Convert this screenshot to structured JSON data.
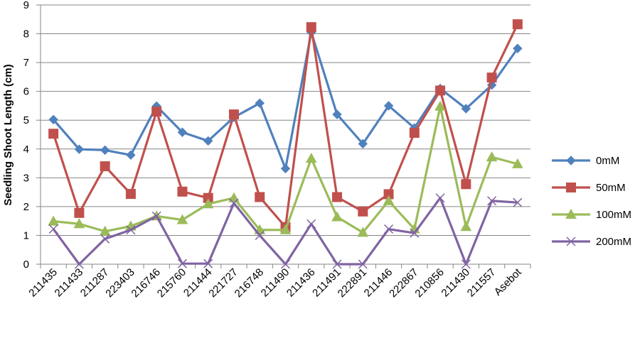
{
  "chart_data": {
    "type": "line",
    "title": "",
    "xlabel": "",
    "ylabel": "Seedling Shoot Length (cm)",
    "ylim": [
      0,
      9
    ],
    "yticks": [
      0,
      1,
      2,
      3,
      4,
      5,
      6,
      7,
      8,
      9
    ],
    "grid": "horizontal",
    "legend_position": "right",
    "categories": [
      "211435",
      "211433",
      "211287",
      "223403",
      "216746",
      "215760",
      "211444",
      "221727",
      "216748",
      "211490",
      "211436",
      "211491",
      "222891",
      "211446",
      "222867",
      "210856",
      "211430",
      "211557",
      "Asebot"
    ],
    "series": [
      {
        "name": "0mM",
        "color": "#4F81BD",
        "marker": "diamond",
        "values": [
          5.02,
          3.99,
          3.96,
          3.79,
          5.49,
          4.58,
          4.28,
          5.1,
          5.59,
          3.32,
          8.05,
          5.2,
          4.18,
          5.5,
          4.73,
          6.1,
          5.4,
          6.22,
          7.49
        ]
      },
      {
        "name": "50mM",
        "color": "#C0504D",
        "marker": "square",
        "values": [
          4.53,
          1.78,
          3.4,
          2.44,
          5.3,
          2.52,
          2.3,
          5.2,
          2.33,
          1.29,
          8.23,
          2.33,
          1.83,
          2.43,
          4.56,
          6.03,
          2.78,
          6.48,
          8.33
        ]
      },
      {
        "name": "100mM",
        "color": "#9BBB59",
        "marker": "triangle",
        "values": [
          1.49,
          1.4,
          1.14,
          1.32,
          1.67,
          1.54,
          2.09,
          2.3,
          1.19,
          1.19,
          3.67,
          1.64,
          1.1,
          2.2,
          1.22,
          5.48,
          1.3,
          3.72,
          3.48
        ]
      },
      {
        "name": "200mM",
        "color": "#8064A2",
        "marker": "x",
        "values": [
          1.22,
          0.0,
          0.88,
          1.19,
          1.67,
          0.02,
          0.02,
          2.12,
          1.0,
          0.0,
          1.4,
          0.0,
          0.0,
          1.22,
          1.08,
          2.3,
          0.0,
          2.2,
          2.14
        ]
      }
    ]
  }
}
